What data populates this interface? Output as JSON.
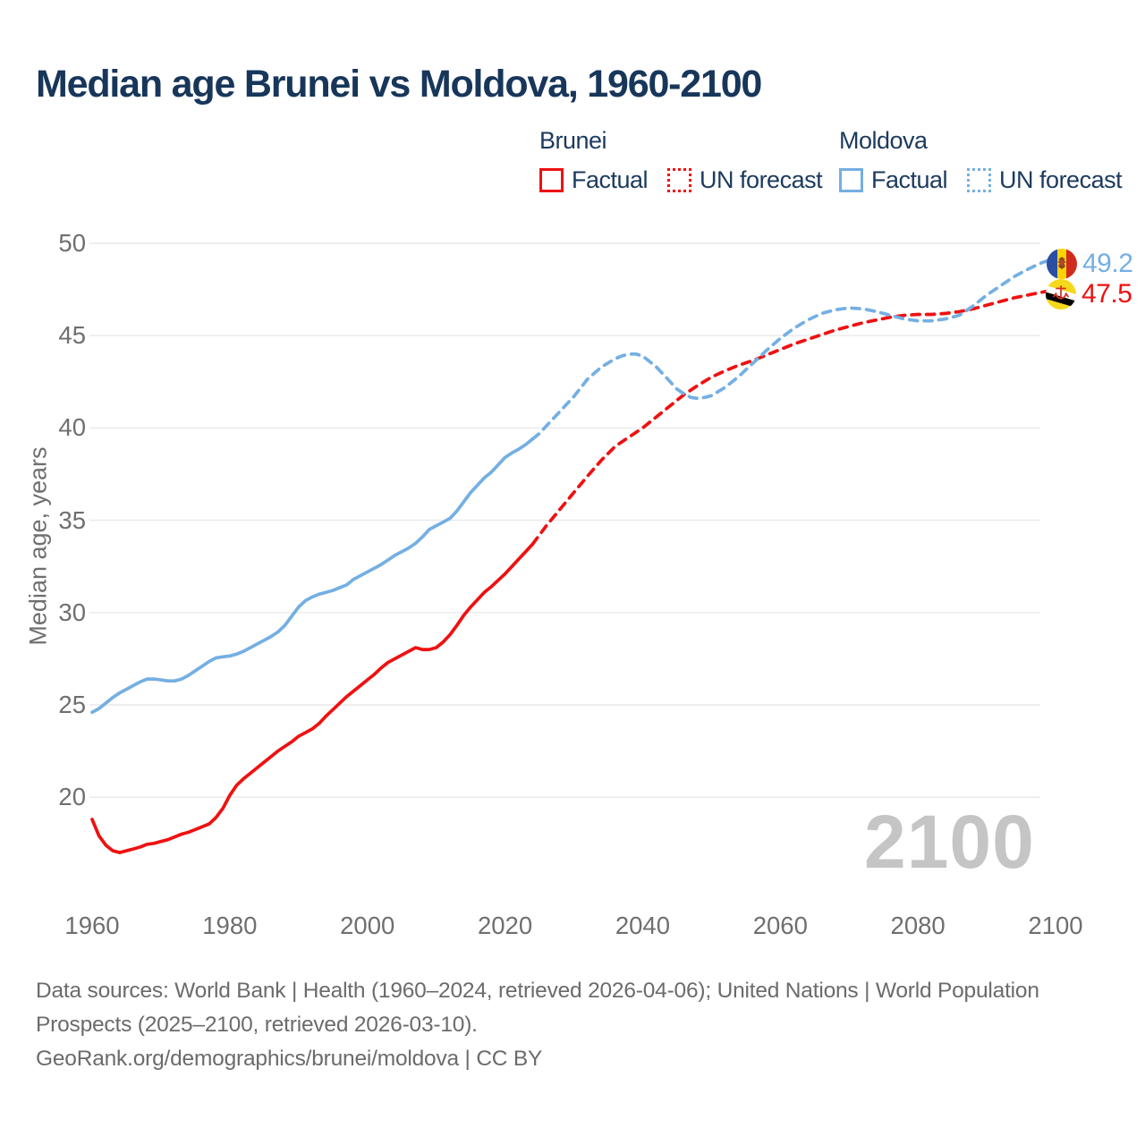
{
  "header": {
    "title": "Median age Brunei vs Moldova, 1960-2100"
  },
  "legend": {
    "groups": [
      {
        "label": "Brunei",
        "color": "#ee1111",
        "items": [
          {
            "label": "Factual",
            "style": "solid"
          },
          {
            "label": "UN forecast",
            "style": "dotted"
          }
        ]
      },
      {
        "label": "Moldova",
        "color": "#74afe3",
        "items": [
          {
            "label": "Factual",
            "style": "solid"
          },
          {
            "label": "UN forecast",
            "style": "dotted"
          }
        ]
      }
    ]
  },
  "chart_data": {
    "type": "line",
    "title": "Median age Brunei vs Moldova, 1960-2100",
    "xlabel": "",
    "ylabel": "Median age, years",
    "xlim": [
      1960,
      2100
    ],
    "ylim": [
      20,
      50
    ],
    "xticks": [
      1960,
      1980,
      2000,
      2020,
      2040,
      2060,
      2080,
      2100
    ],
    "yticks": [
      20,
      25,
      30,
      35,
      40,
      45,
      50
    ],
    "grid": "horizontal-only",
    "legend_position": "top-right",
    "watermark": "2100",
    "series": [
      {
        "name": "Brunei Factual",
        "color": "#ee1111",
        "dash": false,
        "points": [
          [
            1960,
            18.8
          ],
          [
            1961,
            17.9
          ],
          [
            1962,
            17.4
          ],
          [
            1963,
            17.1
          ],
          [
            1964,
            17.0
          ],
          [
            1965,
            17.1
          ],
          [
            1966,
            17.2
          ],
          [
            1967,
            17.3
          ],
          [
            1968,
            17.45
          ],
          [
            1969,
            17.5
          ],
          [
            1970,
            17.6
          ],
          [
            1971,
            17.7
          ],
          [
            1972,
            17.85
          ],
          [
            1973,
            18.0
          ],
          [
            1974,
            18.1
          ],
          [
            1975,
            18.25
          ],
          [
            1976,
            18.4
          ],
          [
            1977,
            18.55
          ],
          [
            1978,
            18.9
          ],
          [
            1979,
            19.4
          ],
          [
            1980,
            20.1
          ],
          [
            1981,
            20.65
          ],
          [
            1982,
            21.0
          ],
          [
            1983,
            21.3
          ],
          [
            1984,
            21.6
          ],
          [
            1985,
            21.9
          ],
          [
            1986,
            22.2
          ],
          [
            1987,
            22.5
          ],
          [
            1988,
            22.75
          ],
          [
            1989,
            23.0
          ],
          [
            1990,
            23.3
          ],
          [
            1991,
            23.5
          ],
          [
            1992,
            23.7
          ],
          [
            1993,
            24.0
          ],
          [
            1994,
            24.4
          ],
          [
            1995,
            24.75
          ],
          [
            1996,
            25.1
          ],
          [
            1997,
            25.45
          ],
          [
            1998,
            25.75
          ],
          [
            1999,
            26.05
          ],
          [
            2000,
            26.35
          ],
          [
            2001,
            26.65
          ],
          [
            2002,
            27.0
          ],
          [
            2003,
            27.3
          ],
          [
            2004,
            27.5
          ],
          [
            2005,
            27.7
          ],
          [
            2006,
            27.9
          ],
          [
            2007,
            28.1
          ],
          [
            2008,
            28.0
          ],
          [
            2009,
            28.0
          ],
          [
            2010,
            28.1
          ],
          [
            2011,
            28.4
          ],
          [
            2012,
            28.8
          ],
          [
            2013,
            29.3
          ],
          [
            2014,
            29.85
          ],
          [
            2015,
            30.3
          ],
          [
            2016,
            30.7
          ],
          [
            2017,
            31.1
          ],
          [
            2018,
            31.4
          ],
          [
            2019,
            31.75
          ],
          [
            2020,
            32.1
          ],
          [
            2021,
            32.5
          ],
          [
            2022,
            32.9
          ],
          [
            2023,
            33.3
          ],
          [
            2024,
            33.7
          ]
        ]
      },
      {
        "name": "Brunei UN forecast",
        "color": "#ee1111",
        "dash": true,
        "points": [
          [
            2024,
            33.7
          ],
          [
            2026,
            34.7
          ],
          [
            2028,
            35.6
          ],
          [
            2030,
            36.5
          ],
          [
            2032,
            37.4
          ],
          [
            2034,
            38.25
          ],
          [
            2036,
            39.0
          ],
          [
            2038,
            39.5
          ],
          [
            2040,
            40.0
          ],
          [
            2042,
            40.6
          ],
          [
            2044,
            41.2
          ],
          [
            2046,
            41.8
          ],
          [
            2048,
            42.3
          ],
          [
            2050,
            42.75
          ],
          [
            2052,
            43.1
          ],
          [
            2054,
            43.4
          ],
          [
            2056,
            43.65
          ],
          [
            2058,
            43.95
          ],
          [
            2060,
            44.25
          ],
          [
            2062,
            44.55
          ],
          [
            2064,
            44.8
          ],
          [
            2066,
            45.05
          ],
          [
            2068,
            45.3
          ],
          [
            2070,
            45.5
          ],
          [
            2072,
            45.7
          ],
          [
            2074,
            45.85
          ],
          [
            2076,
            46.0
          ],
          [
            2078,
            46.1
          ],
          [
            2080,
            46.15
          ],
          [
            2082,
            46.15
          ],
          [
            2084,
            46.2
          ],
          [
            2086,
            46.3
          ],
          [
            2088,
            46.45
          ],
          [
            2090,
            46.65
          ],
          [
            2092,
            46.85
          ],
          [
            2094,
            47.05
          ],
          [
            2096,
            47.2
          ],
          [
            2098,
            47.35
          ],
          [
            2100,
            47.5
          ]
        ]
      },
      {
        "name": "Moldova Factual",
        "color": "#74afe3",
        "dash": false,
        "points": [
          [
            1960,
            24.6
          ],
          [
            1961,
            24.8
          ],
          [
            1962,
            25.1
          ],
          [
            1963,
            25.4
          ],
          [
            1964,
            25.65
          ],
          [
            1965,
            25.85
          ],
          [
            1966,
            26.05
          ],
          [
            1967,
            26.25
          ],
          [
            1968,
            26.4
          ],
          [
            1969,
            26.4
          ],
          [
            1970,
            26.35
          ],
          [
            1971,
            26.3
          ],
          [
            1972,
            26.3
          ],
          [
            1973,
            26.4
          ],
          [
            1974,
            26.6
          ],
          [
            1975,
            26.85
          ],
          [
            1976,
            27.1
          ],
          [
            1977,
            27.35
          ],
          [
            1978,
            27.55
          ],
          [
            1979,
            27.6
          ],
          [
            1980,
            27.65
          ],
          [
            1981,
            27.75
          ],
          [
            1982,
            27.9
          ],
          [
            1983,
            28.1
          ],
          [
            1984,
            28.3
          ],
          [
            1985,
            28.5
          ],
          [
            1986,
            28.7
          ],
          [
            1987,
            28.95
          ],
          [
            1988,
            29.3
          ],
          [
            1989,
            29.8
          ],
          [
            1990,
            30.3
          ],
          [
            1991,
            30.65
          ],
          [
            1992,
            30.85
          ],
          [
            1993,
            31.0
          ],
          [
            1994,
            31.1
          ],
          [
            1995,
            31.2
          ],
          [
            1996,
            31.35
          ],
          [
            1997,
            31.5
          ],
          [
            1998,
            31.8
          ],
          [
            1999,
            32.0
          ],
          [
            2000,
            32.2
          ],
          [
            2001,
            32.4
          ],
          [
            2002,
            32.6
          ],
          [
            2003,
            32.85
          ],
          [
            2004,
            33.1
          ],
          [
            2005,
            33.3
          ],
          [
            2006,
            33.5
          ],
          [
            2007,
            33.75
          ],
          [
            2008,
            34.1
          ],
          [
            2009,
            34.5
          ],
          [
            2010,
            34.7
          ],
          [
            2011,
            34.9
          ],
          [
            2012,
            35.1
          ],
          [
            2013,
            35.5
          ],
          [
            2014,
            36.0
          ],
          [
            2015,
            36.5
          ],
          [
            2016,
            36.9
          ],
          [
            2017,
            37.3
          ],
          [
            2018,
            37.6
          ],
          [
            2019,
            38.0
          ],
          [
            2020,
            38.4
          ],
          [
            2021,
            38.65
          ],
          [
            2022,
            38.85
          ],
          [
            2023,
            39.1
          ],
          [
            2024,
            39.4
          ]
        ]
      },
      {
        "name": "Moldova UN forecast",
        "color": "#74afe3",
        "dash": true,
        "points": [
          [
            2024,
            39.4
          ],
          [
            2025,
            39.7
          ],
          [
            2026,
            40.1
          ],
          [
            2028,
            40.9
          ],
          [
            2030,
            41.7
          ],
          [
            2032,
            42.65
          ],
          [
            2034,
            43.3
          ],
          [
            2036,
            43.75
          ],
          [
            2037,
            43.9
          ],
          [
            2038,
            44.0
          ],
          [
            2039,
            44.0
          ],
          [
            2040,
            43.9
          ],
          [
            2041,
            43.6
          ],
          [
            2042,
            43.3
          ],
          [
            2043,
            42.9
          ],
          [
            2044,
            42.5
          ],
          [
            2045,
            42.1
          ],
          [
            2046,
            41.85
          ],
          [
            2047,
            41.65
          ],
          [
            2048,
            41.6
          ],
          [
            2049,
            41.65
          ],
          [
            2050,
            41.75
          ],
          [
            2052,
            42.2
          ],
          [
            2054,
            42.8
          ],
          [
            2056,
            43.5
          ],
          [
            2058,
            44.2
          ],
          [
            2060,
            44.85
          ],
          [
            2062,
            45.4
          ],
          [
            2064,
            45.85
          ],
          [
            2066,
            46.2
          ],
          [
            2068,
            46.4
          ],
          [
            2070,
            46.5
          ],
          [
            2072,
            46.45
          ],
          [
            2074,
            46.3
          ],
          [
            2076,
            46.1
          ],
          [
            2078,
            45.9
          ],
          [
            2080,
            45.8
          ],
          [
            2082,
            45.8
          ],
          [
            2084,
            45.9
          ],
          [
            2086,
            46.1
          ],
          [
            2088,
            46.6
          ],
          [
            2090,
            47.2
          ],
          [
            2092,
            47.7
          ],
          [
            2094,
            48.2
          ],
          [
            2096,
            48.6
          ],
          [
            2098,
            48.95
          ],
          [
            2100,
            49.2
          ]
        ]
      }
    ]
  },
  "end_labels": [
    {
      "country": "Moldova",
      "value": "49.2",
      "color": "#74afe3",
      "flag": "moldova-flag"
    },
    {
      "country": "Brunei",
      "value": "47.5",
      "color": "#ee1111",
      "flag": "brunei-flag"
    }
  ],
  "footer": {
    "sources": "Data sources: World Bank | Health (1960–2024, retrieved 2026-04-06); United Nations | World Population Prospects (2025–2100, retrieved 2026-03-10).",
    "attribution": "GeoRank.org/demographics/brunei/moldova | CC BY"
  }
}
